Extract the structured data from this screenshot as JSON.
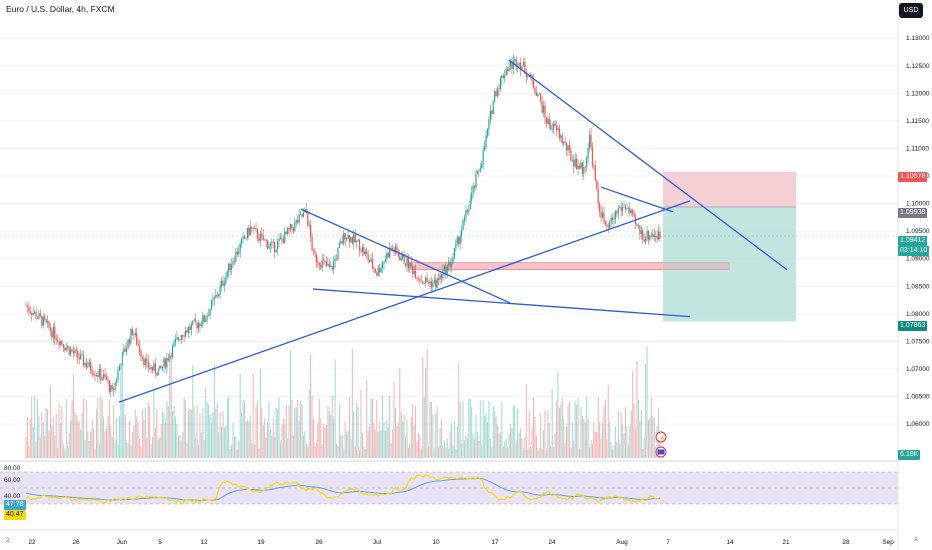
{
  "header": {
    "title": "Euro / U.S. Dollar, 4h, FXCM",
    "currency_button": "USD"
  },
  "colors": {
    "up": "#26a69a",
    "down": "#ef5350",
    "trendline": "#2f5bd6",
    "rsi_line": "#f5d90a",
    "rsi_ma": "#5b9bd5",
    "rsi_band": "#e9e2f5",
    "stop_zone": "#f2c7cd",
    "target_zone": "#b8e0da"
  },
  "price_tags": {
    "stop": "1.10578",
    "entry": "1.09938",
    "current": "1.09412",
    "countdown": "03:14:10",
    "target": "1.07863",
    "volume": "6.18K"
  },
  "rsi_tags": {
    "ma": "47.78",
    "rsi": "40.47"
  },
  "bottom_left": "2",
  "bottom_right": "A",
  "event_icons": [
    "lightning-icon",
    "flag-us-icon"
  ],
  "chart_data": {
    "type": "candlestick",
    "title": "Euro / U.S. Dollar, 4h, FXCM",
    "price_ylim": [
      1.0535,
      1.1333
    ],
    "price_ticks": [
      "1.13000",
      "1.12500",
      "1.12000",
      "1.11500",
      "1.11000",
      "1.10500",
      "1.10000",
      "1.09500",
      "1.09000",
      "1.08500",
      "1.08000",
      "1.07500",
      "1.07000",
      "1.06500",
      "1.06000"
    ],
    "x_ticks": [
      "22",
      "26",
      "Jun",
      "5",
      "12",
      "19",
      "26",
      "Jul",
      "10",
      "17",
      "24",
      "Aug",
      "7",
      "14",
      "21",
      "28",
      "Sep"
    ],
    "rsi_ticks": [
      "80.00",
      "60.00",
      "40.00"
    ],
    "rsi_ylim": [
      0,
      80
    ],
    "rsi_bands": [
      70,
      50,
      30
    ],
    "price_path_anchors": [
      [
        0,
        1.0815
      ],
      [
        12,
        1.0785
      ],
      [
        28,
        1.074
      ],
      [
        46,
        1.07
      ],
      [
        56,
        1.068
      ],
      [
        60,
        1.0655
      ],
      [
        66,
        1.0715
      ],
      [
        74,
        1.077
      ],
      [
        84,
        1.0705
      ],
      [
        93,
        1.0695
      ],
      [
        108,
        1.0765
      ],
      [
        124,
        1.079
      ],
      [
        134,
        1.084
      ],
      [
        144,
        1.09
      ],
      [
        156,
        1.0955
      ],
      [
        164,
        1.0935
      ],
      [
        172,
        1.092
      ],
      [
        180,
        1.094
      ],
      [
        188,
        1.0965
      ],
      [
        195,
        1.0985
      ],
      [
        200,
        1.0905
      ],
      [
        212,
        1.088
      ],
      [
        222,
        1.0945
      ],
      [
        232,
        1.0925
      ],
      [
        244,
        1.0875
      ],
      [
        254,
        1.092
      ],
      [
        266,
        1.089
      ],
      [
        276,
        1.086
      ],
      [
        285,
        1.0855
      ],
      [
        296,
        1.0895
      ],
      [
        308,
        1.0995
      ],
      [
        318,
        1.109
      ],
      [
        326,
        1.12
      ],
      [
        334,
        1.1245
      ],
      [
        342,
        1.126
      ],
      [
        348,
        1.124
      ],
      [
        356,
        1.12
      ],
      [
        362,
        1.115
      ],
      [
        370,
        1.113
      ],
      [
        380,
        1.108
      ],
      [
        388,
        1.106
      ],
      [
        392,
        1.112
      ],
      [
        398,
        1.1
      ],
      [
        404,
        1.095
      ],
      [
        412,
        1.099
      ],
      [
        418,
        1.0995
      ],
      [
        424,
        1.096
      ],
      [
        430,
        1.094
      ],
      [
        436,
        1.0945
      ],
      [
        440,
        1.0941
      ]
    ],
    "trendlines": [
      {
        "from": [
          "May 30",
          1.064
        ],
        "to": [
          "Aug 12",
          1.1005
        ]
      },
      {
        "from": [
          "Jun 21",
          1.099
        ],
        "to": [
          "Jul 12",
          1.082
        ]
      },
      {
        "from": [
          "Jun 24",
          1.0845
        ],
        "to": [
          "Aug 8",
          1.0795
        ]
      },
      {
        "from": [
          "Jul 18",
          1.126
        ],
        "to": [
          "Aug 20",
          1.088
        ]
      },
      {
        "from": [
          "Aug 2",
          1.103
        ],
        "to": [
          "Aug 10",
          1.0985
        ]
      }
    ],
    "zones": [
      {
        "name": "supply-zone",
        "from": 1.0893,
        "to": 1.088
      },
      {
        "name": "stop-zone",
        "from": 1.10578,
        "to": 1.09938
      },
      {
        "name": "target-zone",
        "from": 1.09938,
        "to": 1.07863
      }
    ]
  }
}
